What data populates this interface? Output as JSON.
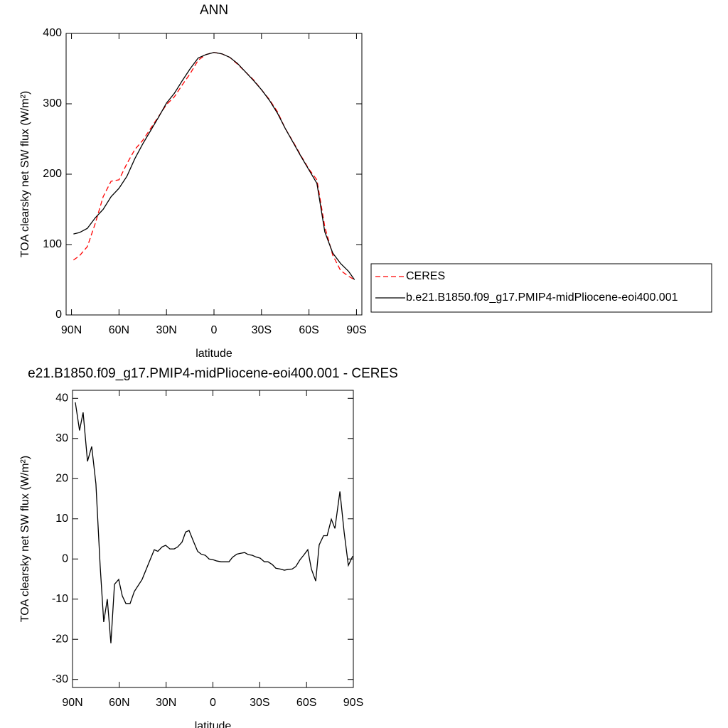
{
  "chart_data": [
    {
      "type": "line",
      "title": "ANN",
      "x_label": "latitude",
      "y_label": "TOA clearsky net SW flux (W/m²)",
      "x": [
        88.75,
        85,
        80,
        75,
        70,
        65,
        60,
        55,
        50,
        45,
        40,
        35,
        30,
        25,
        20,
        15,
        10,
        5,
        0,
        -5,
        -10,
        -15,
        -20,
        -25,
        -30,
        -35,
        -40,
        -45,
        -50,
        -55,
        -60,
        -65,
        -70,
        -75,
        -80,
        -85,
        -88.75
      ],
      "series": [
        {
          "name": "CERES",
          "color": "#ff0000",
          "dashed": true,
          "values": [
            78,
            84,
            97,
            130,
            168,
            190,
            192,
            215,
            235,
            248,
            265,
            282,
            299,
            310,
            327,
            343,
            362,
            370,
            373,
            371,
            366,
            356,
            345,
            334,
            320,
            306,
            289,
            265,
            246,
            226,
            207,
            192,
            125,
            85,
            63,
            55,
            50
          ]
        },
        {
          "name": "b.e21.B1850.f09_g17.PMIP4-midPliocene-eoi400.001",
          "color": "#000000",
          "dashed": false,
          "values": [
            115,
            117,
            123,
            138,
            150,
            168,
            180,
            197,
            222,
            243,
            262,
            281,
            301,
            315,
            333,
            350,
            365,
            370,
            373,
            371,
            366,
            357,
            345,
            333,
            320,
            305,
            287,
            265,
            245,
            225,
            206,
            187,
            118,
            88,
            73,
            62,
            50
          ]
        }
      ],
      "xlim": [
        93.4,
        -93.4
      ],
      "ylim": [
        0,
        400
      ],
      "xticks": [
        {
          "value": 90,
          "label": "90N"
        },
        {
          "value": 60,
          "label": "60N"
        },
        {
          "value": 30,
          "label": "30N"
        },
        0,
        {
          "value": -30,
          "label": "30S"
        },
        {
          "value": -60,
          "label": "60S"
        },
        {
          "value": -90,
          "label": "90S"
        }
      ],
      "yticks": [
        0,
        100,
        200,
        300,
        400
      ],
      "legend": "right"
    },
    {
      "type": "line",
      "title": "e21.B1850.f09_g17.PMIP4-midPliocene-eoi400.001 - CERES",
      "x_label": "latitude",
      "y_label": "TOA clearsky net SW flux (W/m²)",
      "x": [
        88.2,
        85.5,
        83.2,
        80.4,
        77.7,
        75,
        72.3,
        70,
        67.7,
        65.4,
        63.1,
        60.4,
        58.1,
        55.8,
        53.1,
        50.4,
        45.4,
        40.8,
        37.6,
        35.3,
        32.6,
        30.3,
        27.6,
        24.8,
        22.6,
        19.8,
        17.5,
        15.3,
        12.5,
        9.8,
        7.5,
        4.8,
        2.5,
        -0.2,
        -2.5,
        -5.2,
        -7.5,
        -10.3,
        -12.5,
        -15.3,
        -17.5,
        -20.3,
        -22.6,
        -25.3,
        -27.6,
        -30.3,
        -33,
        -35.3,
        -38.1,
        -40.3,
        -43.1,
        -45.8,
        -48.1,
        -50.8,
        -53.1,
        -55.8,
        -58.1,
        -60.8,
        -63.1,
        -65.9,
        -68.1,
        -70.9,
        -73.2,
        -75.9,
        -78.2,
        -81.4,
        -84.1,
        -86.8,
        -89.6
      ],
      "series": [
        {
          "color": "#000000",
          "dashed": false,
          "values": [
            39,
            32,
            36.5,
            24.3,
            28,
            18.7,
            -1.6,
            -15.7,
            -10,
            -21,
            -6.3,
            -5.1,
            -9.2,
            -11.1,
            -11.1,
            -8.1,
            -5.1,
            -0.7,
            2.3,
            1.9,
            3,
            3.4,
            2.5,
            2.5,
            3,
            4.2,
            6.7,
            7.1,
            4.4,
            1.9,
            1.2,
            0.9,
            0,
            -0.2,
            -0.5,
            -0.7,
            -0.7,
            -0.7,
            0.4,
            1.2,
            1.4,
            1.6,
            1.1,
            0.9,
            0.5,
            0.2,
            -0.7,
            -0.7,
            -1.4,
            -2.3,
            -2.5,
            -2.8,
            -2.6,
            -2.5,
            -1.9,
            -0.2,
            0.9,
            2.3,
            -2.5,
            -5.5,
            3.5,
            5.8,
            5.8,
            9.9,
            7.6,
            16.8,
            6.7,
            -1.6,
            0.7
          ]
        }
      ],
      "xlim": [
        90,
        -90
      ],
      "ylim": [
        -32,
        42
      ],
      "xticks": [
        {
          "value": 90,
          "label": "90N"
        },
        {
          "value": 60,
          "label": "60N"
        },
        {
          "value": 30,
          "label": "30N"
        },
        0,
        {
          "value": -30,
          "label": "30S"
        },
        {
          "value": -60,
          "label": "60S"
        },
        {
          "value": -90,
          "label": "90S"
        }
      ],
      "yticks": [
        -30,
        -20,
        -10,
        0,
        10,
        20,
        30,
        40
      ]
    }
  ]
}
